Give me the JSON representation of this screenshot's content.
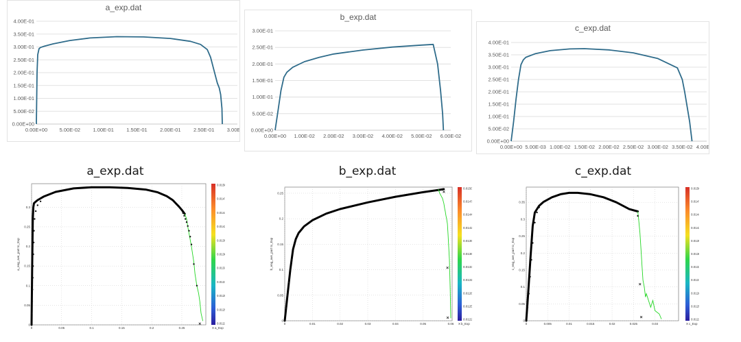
{
  "chart_data": [
    {
      "id": "a_excel",
      "style": "excel",
      "type": "line",
      "title": "a_exp.dat",
      "xlim": [
        0,
        0.3
      ],
      "ylim": [
        0,
        0.4
      ],
      "xticks": [
        0,
        0.05,
        0.1,
        0.15,
        0.2,
        0.25,
        0.3
      ],
      "xtick_labels": [
        "0.00E+00",
        "5.00E-02",
        "1.00E-01",
        "1.50E-01",
        "2.00E-01",
        "2.50E-01",
        "3.00E-01"
      ],
      "yticks": [
        0,
        0.05,
        0.1,
        0.15,
        0.2,
        0.25,
        0.3,
        0.35,
        0.4
      ],
      "ytick_labels": [
        "0.00E+00",
        "5.00E-02",
        "1.00E-01",
        "1.50E-01",
        "2.00E-01",
        "2.50E-01",
        "3.00E-01",
        "3.50E-01",
        "4.00E-01"
      ],
      "series": [
        {
          "color": "#2e6b8a",
          "x": [
            0,
            0.001,
            0.002,
            0.004,
            0.006,
            0.012,
            0.025,
            0.05,
            0.08,
            0.12,
            0.16,
            0.2,
            0.23,
            0.245,
            0.255,
            0.26,
            0.265,
            0.27,
            0.273,
            0.275,
            0.277,
            0.2775
          ],
          "y": [
            0,
            0.2,
            0.27,
            0.293,
            0.298,
            0.303,
            0.312,
            0.325,
            0.335,
            0.34,
            0.339,
            0.333,
            0.322,
            0.31,
            0.29,
            0.26,
            0.21,
            0.16,
            0.14,
            0.115,
            0.06,
            0
          ]
        }
      ]
    },
    {
      "id": "b_excel",
      "style": "excel",
      "type": "line",
      "title": "b_exp.dat",
      "xlim": [
        0,
        0.06
      ],
      "ylim": [
        0,
        0.3
      ],
      "xticks": [
        0,
        0.01,
        0.02,
        0.03,
        0.04,
        0.05,
        0.06
      ],
      "xtick_labels": [
        "0.00E+00",
        "1.00E-02",
        "2.00E-02",
        "3.00E-02",
        "4.00E-02",
        "5.00E-02",
        "6.00E-02"
      ],
      "yticks": [
        0,
        0.05,
        0.1,
        0.15,
        0.2,
        0.25,
        0.3
      ],
      "ytick_labels": [
        "0.00E+00",
        "5.00E-02",
        "1.00E-01",
        "1.50E-01",
        "2.00E-01",
        "2.50E-01",
        "3.00E-01"
      ],
      "series": [
        {
          "color": "#2e6b8a",
          "x": [
            0,
            0.001,
            0.002,
            0.003,
            0.004,
            0.006,
            0.01,
            0.015,
            0.02,
            0.03,
            0.04,
            0.05,
            0.054,
            0.0555,
            0.0565,
            0.0572,
            0.0575
          ],
          "y": [
            0,
            0.06,
            0.12,
            0.16,
            0.175,
            0.19,
            0.207,
            0.22,
            0.23,
            0.242,
            0.251,
            0.257,
            0.259,
            0.2,
            0.12,
            0.05,
            0
          ]
        }
      ]
    },
    {
      "id": "c_excel",
      "style": "excel",
      "type": "line",
      "title": "c_exp.dat",
      "xlim": [
        0,
        0.04
      ],
      "ylim": [
        0,
        0.4
      ],
      "xticks": [
        0,
        0.005,
        0.01,
        0.015,
        0.02,
        0.025,
        0.03,
        0.035,
        0.04
      ],
      "xtick_labels": [
        "0.00E+00",
        "5.00E-03",
        "1.00E-02",
        "1.50E-02",
        "2.00E-02",
        "2.50E-02",
        "3.00E-02",
        "3.50E-02",
        "4.00E-02"
      ],
      "yticks": [
        0,
        0.05,
        0.1,
        0.15,
        0.2,
        0.25,
        0.3,
        0.35,
        0.4
      ],
      "ytick_labels": [
        "0.00E+00",
        "5.00E-02",
        "1.00E-01",
        "1.50E-01",
        "2.00E-01",
        "2.50E-01",
        "3.00E-01",
        "3.50E-01",
        "4.00E-01"
      ],
      "series": [
        {
          "color": "#2e6b8a",
          "x": [
            0,
            0.0005,
            0.001,
            0.0015,
            0.002,
            0.0025,
            0.003,
            0.005,
            0.008,
            0.012,
            0.015,
            0.02,
            0.025,
            0.03,
            0.034,
            0.035,
            0.0355,
            0.036,
            0.0365,
            0.037
          ],
          "y": [
            0,
            0.08,
            0.17,
            0.25,
            0.31,
            0.33,
            0.34,
            0.355,
            0.367,
            0.374,
            0.375,
            0.37,
            0.358,
            0.335,
            0.297,
            0.25,
            0.2,
            0.14,
            0.08,
            0
          ]
        }
      ]
    },
    {
      "id": "a_sim",
      "style": "sim",
      "type": "scatter",
      "title": "a_exp.dat",
      "xlim": [
        0,
        0.29
      ],
      "ylim": [
        0,
        0.36
      ],
      "xticks": [
        0,
        0.05,
        0.1,
        0.15,
        0.2,
        0.25
      ],
      "xtick_labels": [
        "0",
        "0.05",
        "0.1",
        "0.15",
        "0.2",
        "0.25"
      ],
      "yticks": [
        0,
        0.05,
        0.1,
        0.15,
        0.2,
        0.25,
        0.3
      ],
      "ytick_labels": [
        "0",
        "0.05",
        "0.1",
        "0.15",
        "0.2",
        "0.25",
        "0.3"
      ],
      "ylabel": "a_eng_ave_part to_Exp",
      "colorbar_label": "c_curve_dat",
      "colorbar_ticks": [
        "0.01502",
        "0.01475",
        "0.01448",
        "0.0142",
        "0.01393",
        "0.01366",
        "0.01338",
        "0.01311",
        "0.01284",
        "0.01256",
        "0.01229"
      ],
      "legend": "a_Exp",
      "colors": {
        "sim": "#000000",
        "green": "#22d622",
        "exp_marker": "#111111"
      },
      "series": [
        {
          "kind": "sim",
          "x": [
            0,
            0.001,
            0.002,
            0.003,
            0.004,
            0.006,
            0.01,
            0.02,
            0.04,
            0.07,
            0.1,
            0.13,
            0.16,
            0.19,
            0.21,
            0.225,
            0.235,
            0.24,
            0.245,
            0.25,
            0.255
          ],
          "y": [
            0,
            0.15,
            0.27,
            0.3,
            0.31,
            0.313,
            0.318,
            0.327,
            0.339,
            0.348,
            0.351,
            0.351,
            0.349,
            0.345,
            0.338,
            0.328,
            0.318,
            0.31,
            0.302,
            0.293,
            0.283
          ]
        },
        {
          "kind": "green",
          "x": [
            0.255,
            0.258,
            0.26,
            0.263,
            0.266,
            0.27,
            0.272,
            0.275,
            0.278,
            0.28,
            0.282,
            0.285
          ],
          "y": [
            0.283,
            0.27,
            0.25,
            0.225,
            0.2,
            0.16,
            0.13,
            0.1,
            0.08,
            0.06,
            0.03,
            0.01
          ]
        },
        {
          "kind": "exp",
          "x": [
            0,
            0.0005,
            0.001,
            0.0015,
            0.002,
            0.0025,
            0.003,
            0.0035,
            0.004,
            0.005,
            0.007,
            0.01,
            0.015,
            0.252,
            0.254,
            0.256,
            0.258,
            0.26,
            0.262,
            0.264,
            0.266,
            0.27,
            0.275
          ],
          "y": [
            0,
            0.03,
            0.06,
            0.09,
            0.12,
            0.15,
            0.18,
            0.21,
            0.24,
            0.27,
            0.29,
            0.305,
            0.315,
            0.285,
            0.278,
            0.27,
            0.262,
            0.252,
            0.24,
            0.225,
            0.205,
            0.155,
            0.1
          ]
        },
        {
          "kind": "exp-x",
          "x": [
            0.28
          ],
          "y": [
            0.003
          ]
        }
      ]
    },
    {
      "id": "b_sim",
      "style": "sim",
      "type": "scatter",
      "title": "b_exp.dat",
      "xlim": [
        0,
        0.0605
      ],
      "ylim": [
        0,
        0.262
      ],
      "xticks": [
        0,
        0.01,
        0.02,
        0.03,
        0.04,
        0.05,
        0.06
      ],
      "xtick_labels": [
        "0",
        "0.01",
        "0.02",
        "0.03",
        "0.04",
        "0.05",
        "0.06"
      ],
      "yticks": [
        0,
        0.05,
        0.1,
        0.15,
        0.2,
        0.25
      ],
      "ytick_labels": [
        "0",
        "0.05",
        "0.1",
        "0.15",
        "0.2",
        "0.25"
      ],
      "ylabel": "b_eng_ave_part to_Exp",
      "colorbar_label": "c_curve_dat",
      "colorbar_ticks": [
        "0.01502",
        "0.01475",
        "0.01448",
        "0.0142",
        "0.01393",
        "0.01366",
        "0.01338",
        "0.01311",
        "0.01284",
        "0.01256",
        "0.01229"
      ],
      "legend": "b_Exp",
      "colors": {
        "sim": "#000000",
        "green": "#22d622",
        "exp_marker": "#111111"
      },
      "series": [
        {
          "kind": "sim",
          "x": [
            0,
            0.001,
            0.002,
            0.003,
            0.004,
            0.005,
            0.007,
            0.01,
            0.015,
            0.02,
            0.03,
            0.04,
            0.05,
            0.055,
            0.0575
          ],
          "y": [
            0,
            0.05,
            0.1,
            0.14,
            0.16,
            0.172,
            0.185,
            0.197,
            0.21,
            0.219,
            0.232,
            0.243,
            0.252,
            0.256,
            0.258
          ]
        },
        {
          "kind": "green",
          "x": [
            0.0555,
            0.056,
            0.0565,
            0.057,
            0.0575,
            0.0578,
            0.058,
            0.0583,
            0.0585,
            0.0588,
            0.059,
            0.0592,
            0.0595,
            0.0598,
            0.06
          ],
          "y": [
            0.258,
            0.25,
            0.245,
            0.24,
            0.23,
            0.22,
            0.215,
            0.205,
            0.2,
            0.19,
            0.17,
            0.15,
            0.12,
            0.06,
            0.005
          ]
        },
        {
          "kind": "exp",
          "x": [
            0,
            0.0005,
            0.001,
            0.0015,
            0.002,
            0.0025,
            0.003,
            0.0035,
            0.004,
            0.005,
            0.007
          ],
          "y": [
            0,
            0.025,
            0.05,
            0.075,
            0.1,
            0.12,
            0.135,
            0.148,
            0.158,
            0.172,
            0.185
          ]
        },
        {
          "kind": "exp-x",
          "x": [
            0.0575,
            0.0588,
            0.0589
          ],
          "y": [
            0.253,
            0.104,
            0.006
          ]
        }
      ]
    },
    {
      "id": "c_sim",
      "style": "sim",
      "type": "scatter",
      "title": "c_exp.dat",
      "xlim": [
        0,
        0.0355
      ],
      "ylim": [
        0,
        0.395
      ],
      "xticks": [
        0,
        0.005,
        0.01,
        0.015,
        0.02,
        0.025,
        0.03
      ],
      "xtick_labels": [
        "0",
        "0.005",
        "0.01",
        "0.015",
        "0.02",
        "0.025",
        "0.03"
      ],
      "yticks": [
        0,
        0.05,
        0.1,
        0.15,
        0.2,
        0.25,
        0.3,
        0.35
      ],
      "ytick_labels": [
        "0",
        "0.05",
        "0.1",
        "0.15",
        "0.2",
        "0.25",
        "0.3",
        "0.35"
      ],
      "ylabel": "c_eng_ave_part to_Exp",
      "colorbar_label": "c_curve_dat",
      "colorbar_ticks": [
        "0.01502",
        "0.01475",
        "0.01448",
        "0.0142",
        "0.01393",
        "0.01366",
        "0.01338",
        "0.01311",
        "0.01284",
        "0.01256",
        "0.01229"
      ],
      "legend": "c_Exp",
      "colors": {
        "sim": "#000000",
        "green": "#22d622",
        "exp_marker": "#111111"
      },
      "series": [
        {
          "kind": "sim",
          "x": [
            0,
            0.0005,
            0.001,
            0.0015,
            0.002,
            0.003,
            0.004,
            0.006,
            0.008,
            0.01,
            0.012,
            0.015,
            0.018,
            0.021,
            0.024,
            0.026
          ],
          "y": [
            0,
            0.09,
            0.19,
            0.28,
            0.32,
            0.34,
            0.351,
            0.365,
            0.374,
            0.378,
            0.378,
            0.374,
            0.365,
            0.35,
            0.33,
            0.323
          ]
        },
        {
          "kind": "green",
          "x": [
            0.026,
            0.0262,
            0.0265,
            0.0268,
            0.027,
            0.0272,
            0.0275,
            0.0278,
            0.028,
            0.0285,
            0.029,
            0.0295,
            0.03,
            0.031,
            0.0315
          ],
          "y": [
            0.323,
            0.3,
            0.26,
            0.2,
            0.16,
            0.12,
            0.1,
            0.07,
            0.08,
            0.06,
            0.04,
            0.06,
            0.03,
            0.02,
            0.005
          ]
        },
        {
          "kind": "exp",
          "x": [
            0,
            0.0003,
            0.0006,
            0.0009,
            0.0012,
            0.0015,
            0.002,
            0.0025,
            0.003,
            0.004,
            0.026
          ],
          "y": [
            0,
            0.04,
            0.08,
            0.13,
            0.18,
            0.23,
            0.29,
            0.32,
            0.335,
            0.35,
            0.31
          ]
        },
        {
          "kind": "exp-x",
          "x": [
            0.0265,
            0.0268
          ],
          "y": [
            0.108,
            0.011
          ]
        }
      ]
    }
  ]
}
